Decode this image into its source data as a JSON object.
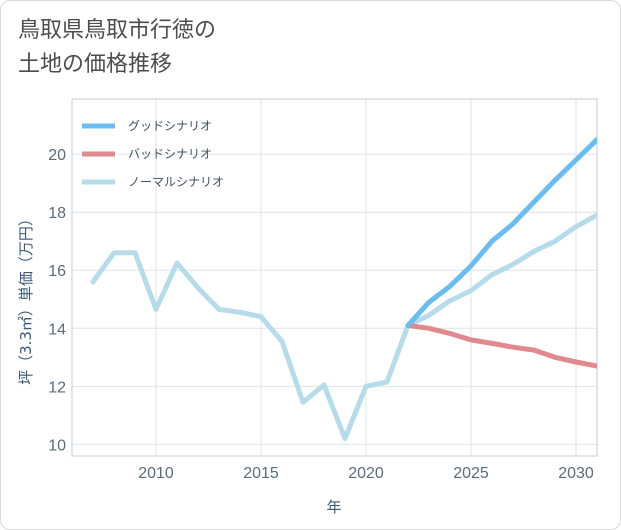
{
  "title": "鳥取県鳥取市行徳の\n土地の価格推移",
  "chart_data": {
    "type": "line",
    "xlabel": "年",
    "ylabel": "坪（3.3㎡）単価（万円）",
    "xlim": [
      2006,
      2031
    ],
    "ylim": [
      9.6,
      21.9
    ],
    "xticks": [
      2010,
      2015,
      2020,
      2025,
      2030
    ],
    "yticks": [
      10,
      12,
      14,
      16,
      18,
      20
    ],
    "grid": true,
    "legend_position": "top-left",
    "series": [
      {
        "name": "グッドシナリオ",
        "color": "#6bbcef",
        "x": [
          2022,
          2023,
          2024,
          2025,
          2026,
          2027,
          2028,
          2029,
          2030,
          2031
        ],
        "y": [
          14.1,
          14.9,
          15.45,
          16.15,
          17.0,
          17.6,
          18.35,
          19.1,
          19.8,
          20.5
        ]
      },
      {
        "name": "バッドシナリオ",
        "color": "#e0898f",
        "x": [
          2022,
          2023,
          2024,
          2025,
          2026,
          2027,
          2028,
          2029,
          2030,
          2031
        ],
        "y": [
          14.1,
          14.0,
          13.82,
          13.6,
          13.48,
          13.35,
          13.25,
          13.0,
          12.84,
          12.7
        ]
      },
      {
        "name": "ノーマルシナリオ",
        "color": "#b6dcea",
        "x": [
          2007,
          2008,
          2009,
          2010,
          2011,
          2012,
          2013,
          2014,
          2015,
          2016,
          2017,
          2018,
          2019,
          2020,
          2021,
          2022,
          2023,
          2024,
          2025,
          2026,
          2027,
          2028,
          2029,
          2030,
          2031
        ],
        "y": [
          15.6,
          16.6,
          16.6,
          14.65,
          16.25,
          15.4,
          14.65,
          14.55,
          14.4,
          13.55,
          11.45,
          12.05,
          10.2,
          12.0,
          12.15,
          14.1,
          14.45,
          14.95,
          15.3,
          15.85,
          16.2,
          16.65,
          17.0,
          17.5,
          17.9
        ]
      }
    ]
  }
}
